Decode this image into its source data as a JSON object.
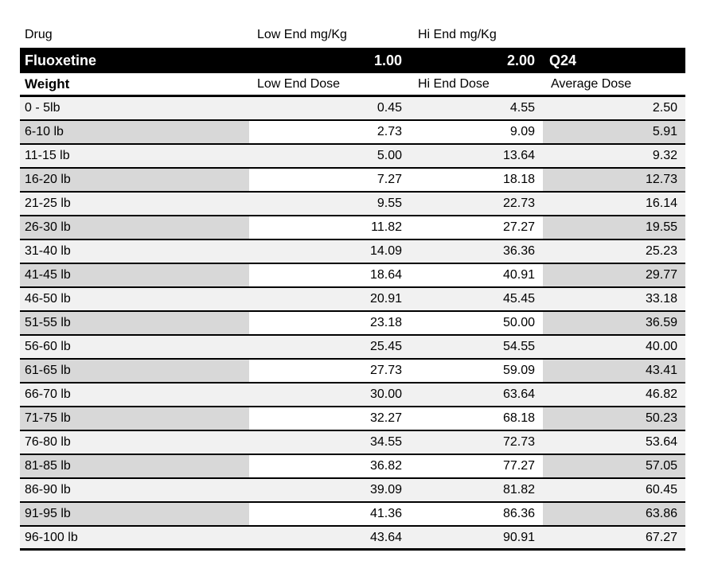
{
  "drug_table": {
    "header_row": {
      "drug": "Drug",
      "low_end": "Low End mg/Kg",
      "hi_end": "Hi End mg/Kg"
    },
    "drug_row": {
      "name": "Fluoxetine",
      "low_mg_kg": "1.00",
      "hi_mg_kg": "2.00",
      "frequency": "Q24"
    },
    "dose_header_row": {
      "weight": "Weight",
      "low": "Low End Dose",
      "hi": "Hi End Dose",
      "avg": "Average Dose"
    },
    "rows": [
      {
        "weight": "0 - 5lb",
        "low": "0.45",
        "hi": "4.55",
        "avg": "2.50"
      },
      {
        "weight": "6-10 lb",
        "low": "2.73",
        "hi": "9.09",
        "avg": "5.91"
      },
      {
        "weight": "11-15 lb",
        "low": "5.00",
        "hi": "13.64",
        "avg": "9.32"
      },
      {
        "weight": "16-20 lb",
        "low": "7.27",
        "hi": "18.18",
        "avg": "12.73"
      },
      {
        "weight": "21-25 lb",
        "low": "9.55",
        "hi": "22.73",
        "avg": "16.14"
      },
      {
        "weight": "26-30 lb",
        "low": "11.82",
        "hi": "27.27",
        "avg": "19.55"
      },
      {
        "weight": "31-40 lb",
        "low": "14.09",
        "hi": "36.36",
        "avg": "25.23"
      },
      {
        "weight": "41-45 lb",
        "low": "18.64",
        "hi": "40.91",
        "avg": "29.77"
      },
      {
        "weight": "46-50 lb",
        "low": "20.91",
        "hi": "45.45",
        "avg": "33.18"
      },
      {
        "weight": "51-55 lb",
        "low": "23.18",
        "hi": "50.00",
        "avg": "36.59"
      },
      {
        "weight": "56-60 lb",
        "low": "25.45",
        "hi": "54.55",
        "avg": "40.00"
      },
      {
        "weight": "61-65 lb",
        "low": "27.73",
        "hi": "59.09",
        "avg": "43.41"
      },
      {
        "weight": "66-70 lb",
        "low": "30.00",
        "hi": "63.64",
        "avg": "46.82"
      },
      {
        "weight": "71-75 lb",
        "low": "32.27",
        "hi": "68.18",
        "avg": "50.23"
      },
      {
        "weight": "76-80 lb",
        "low": "34.55",
        "hi": "72.73",
        "avg": "53.64"
      },
      {
        "weight": "81-85 lb",
        "low": "36.82",
        "hi": "77.27",
        "avg": "57.05"
      },
      {
        "weight": "86-90 lb",
        "low": "39.09",
        "hi": "81.82",
        "avg": "60.45"
      },
      {
        "weight": "91-95 lb",
        "low": "41.36",
        "hi": "86.36",
        "avg": "63.86"
      },
      {
        "weight": "96-100 lb",
        "low": "43.64",
        "hi": "90.91",
        "avg": "67.27"
      }
    ],
    "colors": {
      "band_light": "#f1f1f1",
      "band_dark": "#d8d8d8",
      "highlight_bg": "#000000",
      "highlight_text": "#ffffff",
      "border": "#000000"
    }
  }
}
